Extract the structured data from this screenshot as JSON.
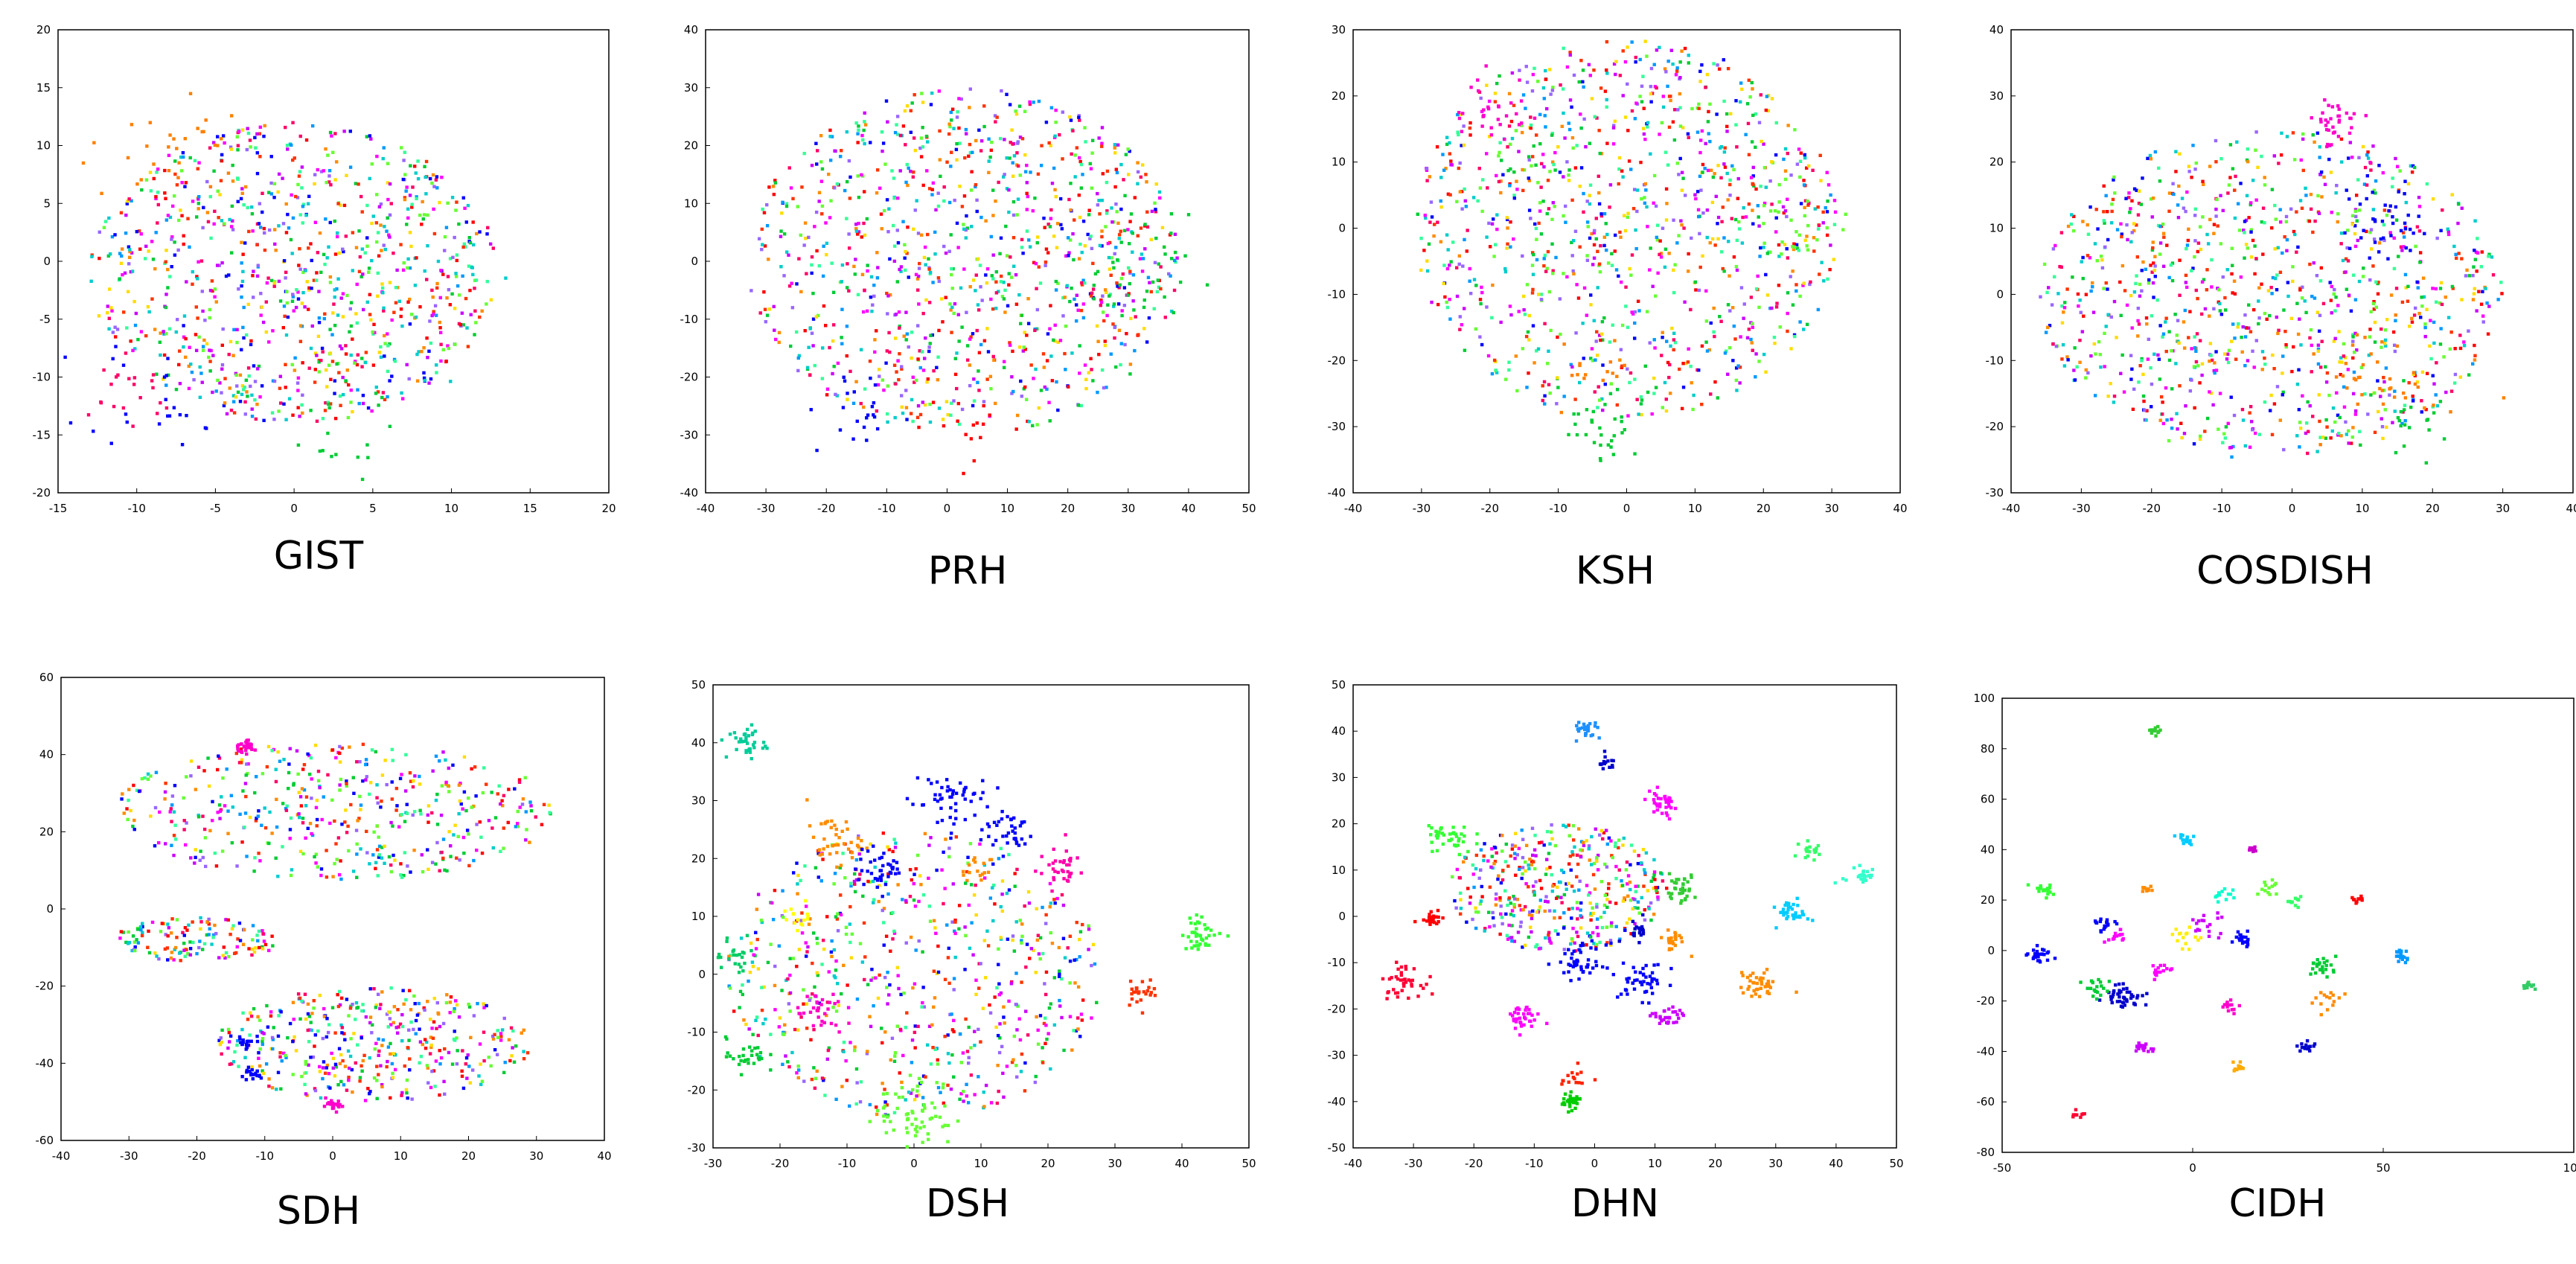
{
  "chart_data": [
    {
      "type": "scatter",
      "title": "GIST",
      "xlim": [
        -15,
        20
      ],
      "ylim": [
        -20,
        20
      ],
      "xticks": [
        -15,
        -10,
        -5,
        0,
        5,
        10,
        15,
        20
      ],
      "yticks": [
        -20,
        -15,
        -10,
        -5,
        0,
        5,
        10,
        15,
        20
      ],
      "description_of_distribution": "dense mixed cloud, no clear clusters",
      "clusters": [
        {
          "color": "#ff7f00",
          "center": [
            -8,
            10
          ],
          "spread": 2.5,
          "n": 30
        },
        {
          "color": "#0000ff",
          "center": [
            -8,
            -11
          ],
          "spread": 2.5,
          "n": 25
        },
        {
          "color": "#ff0066",
          "center": [
            -11,
            -12
          ],
          "spread": 2,
          "n": 20
        },
        {
          "color": "#00cc33",
          "center": [
            2,
            -15
          ],
          "spread": 2,
          "n": 15
        },
        {
          "color": "#00cccc",
          "center": [
            4,
            -3
          ],
          "spread": 4,
          "n": 30
        }
      ],
      "background": {
        "center": [
          0,
          -1
        ],
        "radius": [
          13,
          13
        ],
        "n": 900
      }
    },
    {
      "type": "scatter",
      "title": "PRH",
      "xlim": [
        -40,
        50
      ],
      "ylim": [
        -40,
        40
      ],
      "xticks": [
        -40,
        -30,
        -20,
        -10,
        0,
        10,
        20,
        30,
        40,
        50
      ],
      "yticks": [
        -40,
        -30,
        -20,
        -10,
        0,
        10,
        20,
        30,
        40
      ],
      "description_of_distribution": "dense mixed cloud, no clear clusters",
      "clusters": [
        {
          "color": "#00cc33",
          "center": [
            30,
            -2
          ],
          "spread": 5,
          "n": 40
        },
        {
          "color": "#0000ff",
          "center": [
            -15,
            -27
          ],
          "spread": 4,
          "n": 20
        },
        {
          "color": "#ff0000",
          "center": [
            5,
            -28
          ],
          "spread": 4,
          "n": 15
        }
      ],
      "background": {
        "center": [
          3,
          0
        ],
        "radius": [
          36,
          30
        ],
        "n": 1000
      }
    },
    {
      "type": "scatter",
      "title": "KSH",
      "xlim": [
        -40,
        40
      ],
      "ylim": [
        -40,
        30
      ],
      "xticks": [
        -40,
        -30,
        -20,
        -10,
        0,
        10,
        20,
        30,
        40
      ],
      "yticks": [
        -40,
        -30,
        -20,
        -10,
        0,
        10,
        20,
        30
      ],
      "description_of_distribution": "dense mixed cloud, no clear clusters",
      "clusters": [
        {
          "color": "#ff00cc",
          "center": [
            -20,
            18
          ],
          "spread": 3,
          "n": 30
        },
        {
          "color": "#00cc33",
          "center": [
            -3,
            -30
          ],
          "spread": 2.5,
          "n": 30
        },
        {
          "color": "#ff7f00",
          "center": [
            -5,
            -22
          ],
          "spread": 3,
          "n": 15
        },
        {
          "color": "#66ff33",
          "center": [
            25,
            2
          ],
          "spread": 4,
          "n": 25
        }
      ],
      "background": {
        "center": [
          0,
          0
        ],
        "radius": [
          31,
          29
        ],
        "n": 1000
      }
    },
    {
      "type": "scatter",
      "title": "COSDISH",
      "xlim": [
        -40,
        40
      ],
      "ylim": [
        -30,
        40
      ],
      "xticks": [
        -40,
        -30,
        -20,
        -10,
        0,
        10,
        20,
        30,
        40
      ],
      "yticks": [
        -30,
        -20,
        -10,
        0,
        10,
        20,
        30,
        40
      ],
      "description_of_distribution": "dense mixed cloud, small clusters",
      "clusters": [
        {
          "color": "#ff00cc",
          "center": [
            6,
            26
          ],
          "spread": 2,
          "n": 35
        },
        {
          "color": "#0000ff",
          "center": [
            13,
            10
          ],
          "spread": 3,
          "n": 35
        },
        {
          "color": "#ff7f00",
          "center": [
            13,
            -12
          ],
          "spread": 4,
          "n": 35
        },
        {
          "color": "#00cc33",
          "center": [
            18,
            -20
          ],
          "spread": 3,
          "n": 20
        }
      ],
      "background": {
        "center": [
          -3,
          0
        ],
        "radius": [
          33,
          25
        ],
        "n": 1000
      }
    },
    {
      "type": "scatter",
      "title": "SDH",
      "xlim": [
        -40,
        40
      ],
      "ylim": [
        -60,
        60
      ],
      "xticks": [
        -40,
        -30,
        -20,
        -10,
        0,
        10,
        20,
        30,
        40
      ],
      "yticks": [
        -60,
        -40,
        -20,
        0,
        20,
        40,
        60
      ],
      "description_of_distribution": "three loose groups with small tight clusters",
      "clusters": [
        {
          "color": "#ff00cc",
          "center": [
            -13,
            42
          ],
          "spread": 0.8,
          "n": 30
        },
        {
          "color": "#ff00cc",
          "center": [
            0,
            -51
          ],
          "spread": 0.7,
          "n": 25
        },
        {
          "color": "#0000ff",
          "center": [
            -12,
            -43
          ],
          "spread": 0.7,
          "n": 20
        },
        {
          "color": "#0000ff",
          "center": [
            -13,
            -35
          ],
          "spread": 0.7,
          "n": 15
        }
      ],
      "background_groups": [
        {
          "center": [
            0,
            25
          ],
          "radius": [
            33,
            18
          ],
          "n": 450
        },
        {
          "center": [
            -20,
            -8
          ],
          "radius": [
            12,
            6
          ],
          "n": 130
        },
        {
          "center": [
            6,
            -35
          ],
          "radius": [
            23,
            15
          ],
          "n": 400
        }
      ]
    },
    {
      "type": "scatter",
      "title": "DSH",
      "xlim": [
        -30,
        50
      ],
      "ylim": [
        -30,
        50
      ],
      "xticks": [
        -30,
        -20,
        -10,
        0,
        10,
        20,
        30,
        40,
        50
      ],
      "yticks": [
        -30,
        -20,
        -10,
        0,
        10,
        20,
        30,
        40,
        50
      ],
      "description_of_distribution": "several distinct colored clusters around a mixed core",
      "clusters": [
        {
          "color": "#00cc99",
          "center": [
            -25,
            40
          ],
          "spread": 1.5,
          "n": 35
        },
        {
          "color": "#ff8c00",
          "center": [
            -12,
            23
          ],
          "spread": 2,
          "n": 40
        },
        {
          "color": "#0000ff",
          "center": [
            -5,
            18
          ],
          "spread": 1.8,
          "n": 40
        },
        {
          "color": "#0000ff",
          "center": [
            5,
            30
          ],
          "spread": 3,
          "n": 55
        },
        {
          "color": "#0000ff",
          "center": [
            14,
            25
          ],
          "spread": 2,
          "n": 35
        },
        {
          "color": "#ff00aa",
          "center": [
            22,
            18
          ],
          "spread": 1.7,
          "n": 35
        },
        {
          "color": "#ff8c00",
          "center": [
            9,
            19
          ],
          "spread": 1.5,
          "n": 15
        },
        {
          "color": "#ff00cc",
          "center": [
            -14,
            -7
          ],
          "spread": 1.8,
          "n": 30
        },
        {
          "color": "#00cc33",
          "center": [
            -25,
            -14
          ],
          "spread": 1.5,
          "n": 30
        },
        {
          "color": "#66ff33",
          "center": [
            0,
            -24
          ],
          "spread": 3,
          "n": 60
        },
        {
          "color": "#ffff00",
          "center": [
            -17,
            10
          ],
          "spread": 1.2,
          "n": 15
        },
        {
          "color": "#ff3300",
          "center": [
            34,
            -3
          ],
          "spread": 1.2,
          "n": 25
        },
        {
          "color": "#33ff33",
          "center": [
            43,
            7
          ],
          "spread": 1.5,
          "n": 40
        },
        {
          "color": "#00cc66",
          "center": [
            -27,
            3
          ],
          "spread": 2,
          "n": 25
        }
      ],
      "background": {
        "center": [
          0,
          0
        ],
        "radius": [
          28,
          25
        ],
        "n": 650
      }
    },
    {
      "type": "scatter",
      "title": "DHN",
      "xlim": [
        -40,
        50
      ],
      "ylim": [
        -50,
        50
      ],
      "xticks": [
        -40,
        -30,
        -20,
        -10,
        0,
        10,
        20,
        30,
        40,
        50
      ],
      "yticks": [
        -50,
        -40,
        -30,
        -20,
        -10,
        0,
        10,
        20,
        30,
        40,
        50
      ],
      "description_of_distribution": "many separated compact clusters",
      "clusters": [
        {
          "color": "#1e90ff",
          "center": [
            -1,
            40
          ],
          "spread": 1.2,
          "n": 25
        },
        {
          "color": "#0000cc",
          "center": [
            2,
            33
          ],
          "spread": 0.8,
          "n": 15
        },
        {
          "color": "#ff00ff",
          "center": [
            11,
            24
          ],
          "spread": 1.5,
          "n": 35
        },
        {
          "color": "#33ff33",
          "center": [
            -24,
            17
          ],
          "spread": 2,
          "n": 40
        },
        {
          "color": "#33cc33",
          "center": [
            14,
            6
          ],
          "spread": 1.5,
          "n": 35
        },
        {
          "color": "#ff0000",
          "center": [
            -27,
            0
          ],
          "spread": 1,
          "n": 25
        },
        {
          "color": "#ff0033",
          "center": [
            -32,
            -14
          ],
          "spread": 1.6,
          "n": 40
        },
        {
          "color": "#0000ff",
          "center": [
            -2,
            -10
          ],
          "spread": 2,
          "n": 45
        },
        {
          "color": "#0000ff",
          "center": [
            8,
            -14
          ],
          "spread": 2,
          "n": 45
        },
        {
          "color": "#0000cc",
          "center": [
            7,
            -3
          ],
          "spread": 1.2,
          "n": 20
        },
        {
          "color": "#ff00ff",
          "center": [
            -12,
            -22
          ],
          "spread": 1.5,
          "n": 35
        },
        {
          "color": "#cc00ff",
          "center": [
            12,
            -22
          ],
          "spread": 1.2,
          "n": 30
        },
        {
          "color": "#ff8c00",
          "center": [
            13,
            -5
          ],
          "spread": 1.2,
          "n": 25
        },
        {
          "color": "#ff8c00",
          "center": [
            27,
            -15
          ],
          "spread": 1.5,
          "n": 40
        },
        {
          "color": "#00ccff",
          "center": [
            33,
            1
          ],
          "spread": 1.3,
          "n": 35
        },
        {
          "color": "#33ff66",
          "center": [
            36,
            14
          ],
          "spread": 1,
          "n": 20
        },
        {
          "color": "#33ffcc",
          "center": [
            44,
            9
          ],
          "spread": 1.5,
          "n": 25
        },
        {
          "color": "#00cc00",
          "center": [
            -4,
            -40
          ],
          "spread": 0.8,
          "n": 35
        },
        {
          "color": "#ff2200",
          "center": [
            -3,
            -35
          ],
          "spread": 1.2,
          "n": 15
        }
      ],
      "background": {
        "center": [
          -6,
          6
        ],
        "radius": [
          18,
          14
        ],
        "n": 420
      }
    },
    {
      "type": "scatter",
      "title": "CIDH",
      "xlim": [
        -50,
        100
      ],
      "ylim": [
        -80,
        100
      ],
      "xticks": [
        -50,
        0,
        50,
        100
      ],
      "yticks": [
        -80,
        -60,
        -40,
        -20,
        0,
        20,
        40,
        60,
        80,
        100
      ],
      "description_of_distribution": "compact, well separated clusters",
      "clusters": [
        {
          "color": "#33cc33",
          "center": [
            -10,
            87
          ],
          "spread": 0.8,
          "n": 15
        },
        {
          "color": "#00ccff",
          "center": [
            -2,
            44
          ],
          "spread": 1.2,
          "n": 15
        },
        {
          "color": "#cc00cc",
          "center": [
            16,
            40
          ],
          "spread": 0.8,
          "n": 12
        },
        {
          "color": "#33ff33",
          "center": [
            -40,
            24
          ],
          "spread": 1.5,
          "n": 18
        },
        {
          "color": "#ff8c00",
          "center": [
            -12,
            24
          ],
          "spread": 0.8,
          "n": 10
        },
        {
          "color": "#ff0000",
          "center": [
            43,
            20
          ],
          "spread": 0.8,
          "n": 10
        },
        {
          "color": "#66ff33",
          "center": [
            20,
            25
          ],
          "spread": 1.5,
          "n": 14
        },
        {
          "color": "#33ff66",
          "center": [
            27,
            20
          ],
          "spread": 1.2,
          "n": 10
        },
        {
          "color": "#00ffcc",
          "center": [
            8,
            22
          ],
          "spread": 1.5,
          "n": 12
        },
        {
          "color": "#0000ff",
          "center": [
            -40,
            -2
          ],
          "spread": 1.6,
          "n": 25
        },
        {
          "color": "#0000ff",
          "center": [
            -23,
            10
          ],
          "spread": 1.2,
          "n": 18
        },
        {
          "color": "#ff00ff",
          "center": [
            -20,
            5
          ],
          "spread": 1.5,
          "n": 14
        },
        {
          "color": "#ffee00",
          "center": [
            -2,
            5
          ],
          "spread": 2,
          "n": 15
        },
        {
          "color": "#cc00ff",
          "center": [
            4,
            10
          ],
          "spread": 2.5,
          "n": 18
        },
        {
          "color": "#0000ff",
          "center": [
            13,
            5
          ],
          "spread": 1.5,
          "n": 22
        },
        {
          "color": "#0000cc",
          "center": [
            -18,
            -18
          ],
          "spread": 2.5,
          "n": 45
        },
        {
          "color": "#00cc33",
          "center": [
            -25,
            -15
          ],
          "spread": 2,
          "n": 20
        },
        {
          "color": "#ff00ff",
          "center": [
            -8,
            -8
          ],
          "spread": 1.5,
          "n": 15
        },
        {
          "color": "#00cc33",
          "center": [
            34,
            -6
          ],
          "spread": 2,
          "n": 25
        },
        {
          "color": "#ff8c00",
          "center": [
            35,
            -20
          ],
          "spread": 2,
          "n": 15
        },
        {
          "color": "#0099ff",
          "center": [
            55,
            -2
          ],
          "spread": 1.2,
          "n": 18
        },
        {
          "color": "#ff00cc",
          "center": [
            10,
            -22
          ],
          "spread": 1.2,
          "n": 14
        },
        {
          "color": "#0000cc",
          "center": [
            30,
            -38
          ],
          "spread": 1.2,
          "n": 16
        },
        {
          "color": "#cc00ff",
          "center": [
            -13,
            -38
          ],
          "spread": 1.2,
          "n": 18
        },
        {
          "color": "#ffaa00",
          "center": [
            12,
            -46
          ],
          "spread": 1,
          "n": 12
        },
        {
          "color": "#ff0033",
          "center": [
            -30,
            -65
          ],
          "spread": 0.8,
          "n": 10
        },
        {
          "color": "#33cc66",
          "center": [
            88,
            -14
          ],
          "spread": 1,
          "n": 12
        }
      ]
    }
  ]
}
